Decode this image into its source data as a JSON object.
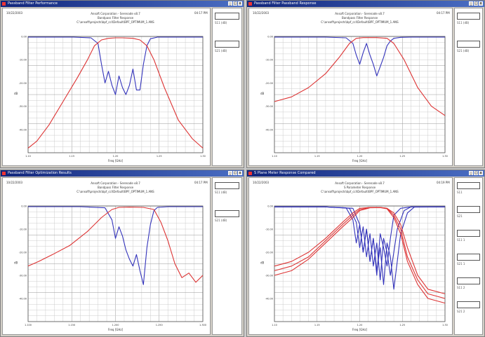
{
  "desktop": {
    "background": "#c9c9c9"
  },
  "windows": [
    {
      "title": "Passband Filter Performance",
      "timestamp": "10/22/2003",
      "time": "04:17 PM",
      "header_lines": [
        "Ansoft Corporation - Serenade v8.7",
        "Bandpass Filter Response",
        "C:\\ansoft\\projects\\bpf_ccl\\Default\\BPF_OPTIMUM_1.ANS"
      ],
      "xlabel": "Freq [GHz]",
      "ylabel": "dB",
      "side_text": [
        "S11 (dB)",
        "S21 (dB)"
      ],
      "chart_data": {
        "type": "line",
        "xlabel": "Freq [GHz]",
        "ylabel": "dB",
        "xlim": [
          0,
          1
        ],
        "ylim": [
          -50,
          0
        ],
        "x_ticks": [
          "1.10",
          "1.15",
          "1.20",
          "1.25",
          "1.30"
        ],
        "y_ticks": [
          "0.00",
          "-10.00",
          "-20.00",
          "-30.00",
          "-40.00"
        ],
        "series": [
          {
            "color": "#3333bb",
            "x": [
              0,
              0.26,
              0.36,
              0.4,
              0.42,
              0.44,
              0.46,
              0.48,
              0.5,
              0.52,
              0.54,
              0.56,
              0.58,
              0.6,
              0.62,
              0.64,
              0.66,
              0.68,
              0.7,
              0.74,
              0.8,
              1.0
            ],
            "y": [
              -0.3,
              -0.3,
              -0.6,
              -3,
              -12,
              -20,
              -15,
              -21,
              -25,
              -17,
              -22,
              -25,
              -21,
              -14,
              -23,
              -23,
              -12,
              -4,
              -1,
              -0.3,
              -0.3,
              -0.3
            ]
          },
          {
            "color": "#dd3333",
            "x": [
              0,
              0.05,
              0.12,
              0.2,
              0.28,
              0.34,
              0.38,
              0.42,
              0.46,
              0.5,
              0.54,
              0.6,
              0.64,
              0.68,
              0.72,
              0.78,
              0.86,
              0.94,
              1.0
            ],
            "y": [
              -48,
              -45,
              -38,
              -28,
              -18,
              -10,
              -4,
              -1.5,
              -0.8,
              -0.6,
              -0.6,
              -0.8,
              -1.5,
              -4,
              -10,
              -22,
              -36,
              -44,
              -48
            ]
          }
        ]
      }
    },
    {
      "title": "Passband Filter Passband Response",
      "timestamp": "10/22/2003",
      "time": "04:17 PM",
      "header_lines": [
        "Ansoft Corporation - Serenade v8.7",
        "Bandpass Filter Response",
        "C:\\ansoft\\projects\\bpf_ccl\\Default\\BPF_OPTIMUM_1.ANS"
      ],
      "xlabel": "Freq [GHz]",
      "ylabel": "dB",
      "side_text": [
        "S11 (dB)",
        "S21 (dB)"
      ],
      "chart_data": {
        "type": "line",
        "xlabel": "Freq [GHz]",
        "ylabel": "dB",
        "xlim": [
          0,
          1
        ],
        "ylim": [
          -50,
          0
        ],
        "x_ticks": [
          "1.10",
          "1.15",
          "1.20",
          "1.25",
          "1.30"
        ],
        "y_ticks": [
          "0.00",
          "-10.00",
          "-20.00",
          "-30.00",
          "-40.00"
        ],
        "series": [
          {
            "color": "#3333bb",
            "x": [
              0,
              0.3,
              0.42,
              0.46,
              0.48,
              0.5,
              0.52,
              0.54,
              0.56,
              0.58,
              0.6,
              0.62,
              0.64,
              0.66,
              0.68,
              0.7,
              0.74,
              0.8,
              1.0
            ],
            "y": [
              -0.3,
              -0.3,
              -0.6,
              -3,
              -8,
              -12,
              -7,
              -3,
              -8,
              -12,
              -17,
              -13,
              -9,
              -4,
              -2,
              -0.8,
              -0.4,
              -0.3,
              -0.3
            ]
          },
          {
            "color": "#dd3333",
            "x": [
              0,
              0.1,
              0.2,
              0.3,
              0.38,
              0.44,
              0.48,
              0.52,
              0.6,
              0.66,
              0.7,
              0.76,
              0.84,
              0.92,
              1.0
            ],
            "y": [
              -28,
              -26,
              -22,
              -16,
              -9,
              -3,
              -0.8,
              -0.5,
              -0.5,
              -0.8,
              -3,
              -10,
              -22,
              -30,
              -34
            ]
          }
        ]
      }
    },
    {
      "title": "Passband Filter Optimization Results",
      "timestamp": "10/22/2003",
      "time": "04:17 PM",
      "header_lines": [
        "Ansoft Corporation - Serenade v8.7",
        "Bandpass Filter Response",
        "C:\\ansoft\\projects\\bpf_ccl\\Default\\BPF_OPTIMUM_1.ANS"
      ],
      "xlabel": "Freq [GHz]",
      "ylabel": "dB",
      "side_text": [
        "S11 (dB)",
        "S21 (dB)"
      ],
      "chart_data": {
        "type": "line",
        "xlabel": "Freq [GHz]",
        "ylabel": "dB",
        "xlim": [
          0,
          1
        ],
        "ylim": [
          -50,
          0
        ],
        "x_ticks": [
          "1.100",
          "1.150",
          "1.200",
          "1.250",
          "1.300"
        ],
        "y_ticks": [
          "0.00",
          "-10.00",
          "-20.00",
          "-30.00",
          "-40.00"
        ],
        "series": [
          {
            "color": "#3333bb",
            "x": [
              0,
              0.3,
              0.44,
              0.48,
              0.5,
              0.52,
              0.54,
              0.56,
              0.58,
              0.6,
              0.62,
              0.64,
              0.66,
              0.68,
              0.7,
              0.72,
              0.74,
              0.8,
              1.0
            ],
            "y": [
              -0.3,
              -0.3,
              -0.8,
              -6,
              -14,
              -9,
              -13,
              -19,
              -23,
              -26,
              -21,
              -28,
              -34,
              -18,
              -8,
              -2,
              -0.6,
              -0.3,
              -0.3
            ]
          },
          {
            "color": "#dd3333",
            "x": [
              0,
              0.06,
              0.14,
              0.24,
              0.34,
              0.42,
              0.48,
              0.52,
              0.58,
              0.66,
              0.72,
              0.76,
              0.8,
              0.84,
              0.88,
              0.92,
              0.96,
              1.0
            ],
            "y": [
              -26,
              -24,
              -21,
              -17,
              -11,
              -5,
              -1.5,
              -0.6,
              -0.5,
              -0.6,
              -1.5,
              -7,
              -15,
              -25,
              -31,
              -29,
              -33,
              -30
            ]
          }
        ]
      }
    },
    {
      "title": "S Plane Meter Response Compared",
      "timestamp": "10/22/2003",
      "time": "04:19 PM",
      "header_lines": [
        "Ansoft Corporation - Serenade v8.7",
        "S Parameter Response",
        "C:\\ansoft\\projects\\bpf_ccl\\Default\\BPF_OPTIMUM_1.ANS"
      ],
      "xlabel": "Freq [GHz]",
      "ylabel": "dB",
      "side_text": [
        "S11",
        "S21",
        "S11 1",
        "S21 1",
        "S11 2",
        "S21 2"
      ],
      "chart_data": {
        "type": "line",
        "xlabel": "Freq [GHz]",
        "ylabel": "dB",
        "xlim": [
          0,
          1
        ],
        "ylim": [
          -50,
          0
        ],
        "x_ticks": [
          "1.10",
          "1.15",
          "1.20",
          "1.25",
          "1.30"
        ],
        "y_ticks": [
          "0.00",
          "-10.00",
          "-20.00",
          "-30.00",
          "-40.00"
        ],
        "series": [
          {
            "color": "#3333bb",
            "x": [
              0,
              0.3,
              0.42,
              0.46,
              0.48,
              0.5,
              0.52,
              0.54,
              0.56,
              0.58,
              0.6,
              0.62,
              0.64,
              0.66,
              0.68,
              0.7,
              0.74,
              0.8,
              1.0
            ],
            "y": [
              -0.4,
              -0.4,
              -0.8,
              -6,
              -16,
              -8,
              -20,
              -10,
              -24,
              -14,
              -30,
              -12,
              -18,
              -26,
              -14,
              -4,
              -1,
              -0.4,
              -0.4
            ]
          },
          {
            "color": "#3333bb",
            "x": [
              0,
              0.3,
              0.44,
              0.48,
              0.5,
              0.52,
              0.54,
              0.56,
              0.58,
              0.6,
              0.62,
              0.64,
              0.66,
              0.68,
              0.7,
              0.72,
              0.76,
              0.8,
              1.0
            ],
            "y": [
              -0.4,
              -0.4,
              -1,
              -7,
              -18,
              -9,
              -22,
              -12,
              -26,
              -16,
              -32,
              -14,
              -20,
              -30,
              -20,
              -10,
              -2,
              -0.4,
              -0.4
            ]
          },
          {
            "color": "#3333bb",
            "x": [
              0,
              0.3,
              0.46,
              0.5,
              0.52,
              0.54,
              0.56,
              0.58,
              0.6,
              0.62,
              0.64,
              0.66,
              0.68,
              0.7,
              0.72,
              0.74,
              0.78,
              0.82,
              1.0
            ],
            "y": [
              -0.4,
              -0.4,
              -1,
              -8,
              -20,
              -10,
              -24,
              -14,
              -28,
              -18,
              -34,
              -16,
              -22,
              -36,
              -24,
              -12,
              -3,
              -0.5,
              -0.4
            ]
          },
          {
            "color": "#dd3333",
            "x": [
              0,
              0.1,
              0.2,
              0.3,
              0.4,
              0.46,
              0.5,
              0.56,
              0.62,
              0.66,
              0.7,
              0.74,
              0.78,
              0.84,
              0.9,
              1.0
            ],
            "y": [
              -26,
              -24,
              -20,
              -14,
              -7,
              -3,
              -1,
              -0.6,
              -0.6,
              -1,
              -3,
              -8,
              -18,
              -30,
              -36,
              -38
            ]
          },
          {
            "color": "#dd3333",
            "x": [
              0,
              0.1,
              0.2,
              0.3,
              0.4,
              0.46,
              0.5,
              0.56,
              0.62,
              0.66,
              0.7,
              0.74,
              0.78,
              0.84,
              0.9,
              1.0
            ],
            "y": [
              -28,
              -26,
              -22,
              -15,
              -8,
              -4,
              -1.5,
              -0.7,
              -0.6,
              -1,
              -4,
              -10,
              -22,
              -32,
              -38,
              -40
            ]
          },
          {
            "color": "#dd3333",
            "x": [
              0,
              0.1,
              0.2,
              0.3,
              0.4,
              0.46,
              0.5,
              0.56,
              0.62,
              0.66,
              0.7,
              0.74,
              0.78,
              0.84,
              0.9,
              1.0
            ],
            "y": [
              -30,
              -28,
              -23,
              -16,
              -9,
              -5,
              -2,
              -0.8,
              -0.7,
              -1.2,
              -5,
              -12,
              -24,
              -34,
              -40,
              -42
            ]
          }
        ]
      }
    }
  ]
}
